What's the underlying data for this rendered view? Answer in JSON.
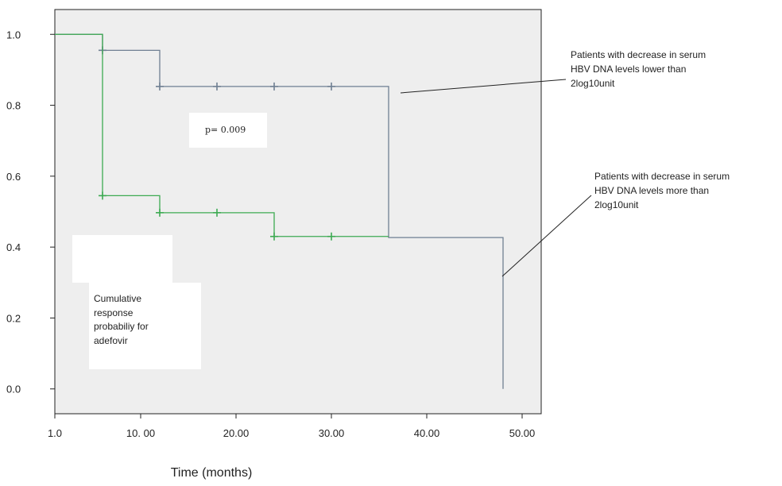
{
  "chart_data": {
    "type": "line",
    "title": "",
    "xlabel": "Time (months)",
    "ylabel": "",
    "xlim": [
      1,
      52
    ],
    "ylim": [
      -0.07,
      1.07
    ],
    "x_ticks": [
      1,
      10,
      20,
      30,
      40,
      50
    ],
    "x_tick_labels": [
      "1.0",
      "10. 00",
      "20.00",
      "30.00",
      "40.00",
      "50.00"
    ],
    "y_ticks": [
      0,
      0.2,
      0.4,
      0.6,
      0.8,
      1.0
    ],
    "y_tick_labels": [
      "0.0",
      "0.2",
      "0.4",
      "0.6",
      "0.8",
      "1.0"
    ],
    "grid": false,
    "background": "#eeeeee",
    "series": [
      {
        "color": "#6f7f92",
        "steps": [
          [
            1,
            1.0
          ],
          [
            6,
            0.955
          ],
          [
            12,
            0.853
          ],
          [
            36,
            0.427
          ],
          [
            48,
            0.0
          ]
        ],
        "end_x": 48,
        "censored": [
          [
            6,
            0.955
          ],
          [
            12,
            0.853
          ],
          [
            18,
            0.853
          ],
          [
            24,
            0.853
          ],
          [
            30,
            0.853
          ]
        ]
      },
      {
        "color": "#3daa52",
        "steps": [
          [
            1,
            1.0
          ],
          [
            6,
            0.545
          ],
          [
            12,
            0.497
          ],
          [
            24,
            0.43
          ]
        ],
        "end_x": 36,
        "censored": [
          [
            6,
            0.545
          ],
          [
            12,
            0.497
          ],
          [
            18,
            0.497
          ],
          [
            24,
            0.43
          ],
          [
            30,
            0.43
          ]
        ]
      }
    ],
    "annotations": {
      "p_value": "p= 0.009",
      "lower": [
        "Patients with decrease in serum",
        "HBV DNA levels lower than",
        "2log10unit"
      ],
      "more": [
        "Patients with decrease in serum",
        "HBV DNA levels more than",
        "2log10unit"
      ],
      "ylabel_box": [
        "Cumulative",
        "response",
        "probabiliy for",
        "adefovir"
      ]
    }
  }
}
